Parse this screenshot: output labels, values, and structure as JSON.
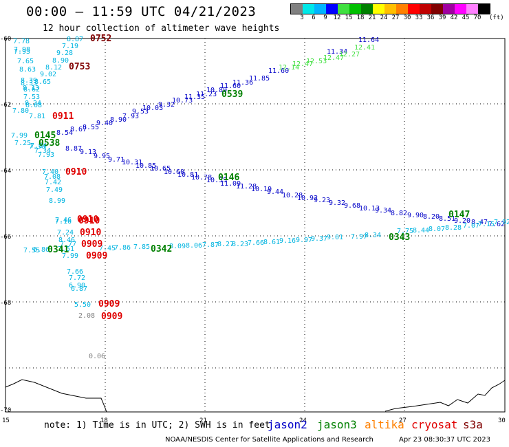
{
  "header": {
    "title": "00:00 – 11:59 UTC 04/21/2023",
    "subtitle": "12 hour collection of altimeter wave heights"
  },
  "colorbar": {
    "colors": [
      "#808080",
      "#00e8e8",
      "#00b4ff",
      "#0000ff",
      "#40e040",
      "#00c000",
      "#008000",
      "#ffff00",
      "#ffc000",
      "#ff8000",
      "#ff0000",
      "#c00000",
      "#800000",
      "#a000a0",
      "#ff00ff",
      "#ff80ff",
      "#000000"
    ],
    "ticks": [
      "3",
      "6",
      "9",
      "12",
      "15",
      "18",
      "21",
      "24",
      "27",
      "30",
      "33",
      "36",
      "39",
      "42",
      "45",
      "70"
    ],
    "unit": "(ft)"
  },
  "axes": {
    "lon_labels": [
      "15",
      "18",
      "21",
      "24",
      "27",
      "30"
    ],
    "lat_labels": [
      "-60",
      "-62",
      "-64",
      "-66",
      "-68",
      "-70"
    ]
  },
  "tracks": [
    {
      "id": "t1",
      "color": "#00b4e0",
      "labels": [
        "7.78",
        "7.98",
        "7.93",
        "7.65",
        "8.63",
        "8.39",
        "8.33",
        "8.13",
        "8.62",
        "7.53",
        "8.24",
        "8.08",
        "7.80",
        "7.81"
      ]
    },
    {
      "id": "t2",
      "color": "#00b4e0",
      "labels": [
        "8.87",
        "7.19",
        "9.28",
        "8.90",
        "8.12",
        "9.02",
        "8.65"
      ]
    },
    {
      "id": "t3",
      "color": "#0000c8",
      "labels": [
        "7.93",
        "8.90",
        "9.40",
        "8.55",
        "8.67",
        "8.54",
        "8.87",
        "9.13",
        "9.95",
        "9.71",
        "10.31",
        "10.85",
        "10.65",
        "10.60",
        "10.81",
        "10.78",
        "10.35",
        "11.09",
        "11.28",
        "10.19",
        "9.44",
        "10.28",
        "10.92",
        "9.23",
        "9.32",
        "9.68",
        "10.13",
        "9.34",
        "8.82",
        "9.90",
        "8.20",
        "8.51",
        "9.20",
        "8.47",
        "7.62"
      ]
    },
    {
      "id": "t4",
      "color": "#00b4e0",
      "labels": [
        "7.99",
        "7.25",
        "7.84",
        "7.30",
        "7.34",
        "7.93"
      ]
    },
    {
      "id": "t5",
      "color": "#0000c8",
      "labels": [
        "9.53",
        "10.03",
        "9.32",
        "10.73",
        "11.35",
        "11.23",
        "10.89",
        "11.60",
        "11.36",
        "11.85",
        "11.60",
        "11.34",
        "11.64"
      ]
    },
    {
      "id": "t6",
      "color": "#40e040",
      "labels": [
        "12.14",
        "12.47",
        "12.53",
        "12.47",
        "12.27",
        "12.41"
      ]
    },
    {
      "id": "t7",
      "color": "#00b4e0",
      "labels": [
        "7.40",
        "7.08",
        "7.42",
        "7.49",
        "8.99"
      ]
    },
    {
      "id": "t8",
      "color": "#00b4e0",
      "labels": [
        "7.46",
        "7.16",
        "7.24",
        "8.46",
        "7.77",
        "7.99",
        "7.66",
        "7.72",
        "6.90",
        "6.87",
        "5.50"
      ]
    },
    {
      "id": "t9",
      "color": "#00b4e0",
      "labels": [
        "7.55",
        "6.86",
        "7.51",
        "7.45",
        "7.86",
        "7.85",
        "8.09",
        "8.06",
        "7.87",
        "8.27",
        "8.23",
        "7.66",
        "8.61",
        "9.16",
        "9.97",
        "9.37",
        "9.01",
        "7.97",
        "8.34",
        "7.75",
        "8.44",
        "8.07",
        "8.28",
        "7.07",
        "7.15",
        "7.92"
      ]
    },
    {
      "id": "t10",
      "color": "#808080",
      "labels": [
        "2.08",
        "0.06"
      ]
    }
  ],
  "times": [
    {
      "t": "0752",
      "color": "#800000"
    },
    {
      "t": "0753",
      "color": "#800000"
    },
    {
      "t": "0539",
      "color": "#008000"
    },
    {
      "t": "0911",
      "color": "#e00000"
    },
    {
      "t": "0145",
      "color": "#008000"
    },
    {
      "t": "0538",
      "color": "#008000"
    },
    {
      "t": "0910",
      "color": "#e00000"
    },
    {
      "t": "0146",
      "color": "#008000"
    },
    {
      "t": "0147",
      "color": "#008000"
    },
    {
      "t": "0910",
      "color": "#e00000"
    },
    {
      "t": "0910",
      "color": "#e00000"
    },
    {
      "t": "0910",
      "color": "#e00000"
    },
    {
      "t": "0343",
      "color": "#008000"
    },
    {
      "t": "0341",
      "color": "#008000"
    },
    {
      "t": "0342",
      "color": "#008000"
    },
    {
      "t": "0909",
      "color": "#e00000"
    },
    {
      "t": "0909",
      "color": "#e00000"
    },
    {
      "t": "0909",
      "color": "#e00000"
    },
    {
      "t": "0909",
      "color": "#e00000"
    }
  ],
  "footer": {
    "note": "note: 1) Time is in UTC; 2) SWH is in feet",
    "satellites": [
      {
        "name": "jason2",
        "color": "#0000c8"
      },
      {
        "name": "jason3",
        "color": "#008000"
      },
      {
        "name": "altika",
        "color": "#ff8000"
      },
      {
        "name": "cryosat",
        "color": "#e00000"
      },
      {
        "name": "s3a",
        "color": "#800000"
      }
    ],
    "credit": "NOAA/NESDIS Center for Satellite Applications and Research",
    "stamp": "Apr 23 08:30:37 UTC 2023"
  }
}
